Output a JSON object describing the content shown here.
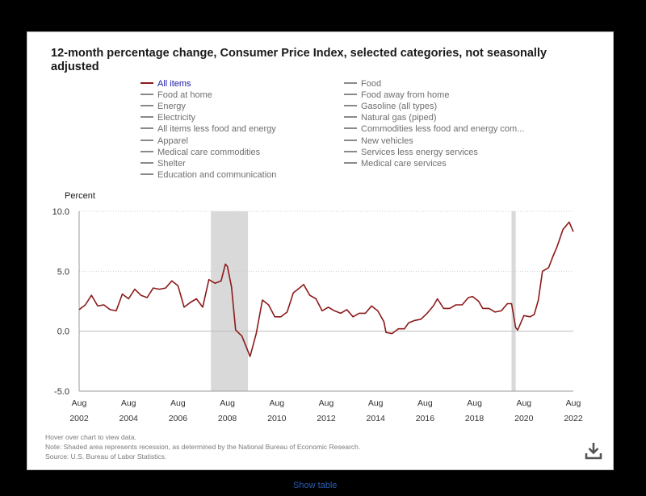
{
  "chart_data": {
    "type": "line",
    "title": "12-month percentage change, Consumer Price Index, selected categories, not seasonally adjusted",
    "ylabel": "Percent",
    "xlabel": "",
    "ylim": [
      -5,
      10
    ],
    "yticks": [
      "10.0",
      "5.0",
      "0.0",
      "-5.0"
    ],
    "xticks": [
      {
        "month": "Aug",
        "year": "2002"
      },
      {
        "month": "Aug",
        "year": "2004"
      },
      {
        "month": "Aug",
        "year": "2006"
      },
      {
        "month": "Aug",
        "year": "2008"
      },
      {
        "month": "Aug",
        "year": "2010"
      },
      {
        "month": "Aug",
        "year": "2012"
      },
      {
        "month": "Aug",
        "year": "2014"
      },
      {
        "month": "Aug",
        "year": "2016"
      },
      {
        "month": "Aug",
        "year": "2018"
      },
      {
        "month": "Aug",
        "year": "2020"
      },
      {
        "month": "Aug",
        "year": "2022"
      }
    ],
    "grid": true,
    "legend_position": "top",
    "recessions": [
      {
        "start": "2007-12",
        "end": "2009-06"
      },
      {
        "start": "2020-02",
        "end": "2020-04"
      }
    ],
    "series": [
      {
        "name": "All items",
        "color": "#8b1a1a",
        "x": [
          "2002-08",
          "2002-11",
          "2003-02",
          "2003-05",
          "2003-08",
          "2003-11",
          "2004-02",
          "2004-05",
          "2004-08",
          "2004-11",
          "2005-02",
          "2005-05",
          "2005-08",
          "2005-11",
          "2006-02",
          "2006-05",
          "2006-08",
          "2006-11",
          "2007-02",
          "2007-05",
          "2007-08",
          "2007-11",
          "2008-02",
          "2008-05",
          "2008-07",
          "2008-08",
          "2008-10",
          "2008-12",
          "2009-03",
          "2009-07",
          "2009-10",
          "2010-01",
          "2010-04",
          "2010-07",
          "2010-10",
          "2011-01",
          "2011-04",
          "2011-07",
          "2011-09",
          "2011-12",
          "2012-03",
          "2012-06",
          "2012-09",
          "2012-12",
          "2013-03",
          "2013-06",
          "2013-09",
          "2013-12",
          "2014-03",
          "2014-06",
          "2014-09",
          "2014-12",
          "2015-01",
          "2015-04",
          "2015-07",
          "2015-10",
          "2015-12",
          "2016-03",
          "2016-06",
          "2016-09",
          "2016-12",
          "2017-02",
          "2017-05",
          "2017-08",
          "2017-11",
          "2018-02",
          "2018-05",
          "2018-07",
          "2018-10",
          "2018-12",
          "2019-03",
          "2019-06",
          "2019-09",
          "2019-12",
          "2020-02",
          "2020-04",
          "2020-05",
          "2020-08",
          "2020-11",
          "2021-01",
          "2021-03",
          "2021-05",
          "2021-08",
          "2021-10",
          "2021-12",
          "2022-03",
          "2022-06",
          "2022-08"
        ],
        "y": [
          1.8,
          2.2,
          3.0,
          2.1,
          2.2,
          1.8,
          1.7,
          3.1,
          2.7,
          3.5,
          3.0,
          2.8,
          3.6,
          3.5,
          3.6,
          4.2,
          3.8,
          2.0,
          2.4,
          2.7,
          2.0,
          4.3,
          4.0,
          4.2,
          5.6,
          5.4,
          3.7,
          0.1,
          -0.4,
          -2.1,
          -0.2,
          2.6,
          2.2,
          1.2,
          1.2,
          1.6,
          3.2,
          3.6,
          3.9,
          3.0,
          2.7,
          1.7,
          2.0,
          1.7,
          1.5,
          1.8,
          1.2,
          1.5,
          1.5,
          2.1,
          1.7,
          0.8,
          -0.1,
          -0.2,
          0.2,
          0.2,
          0.7,
          0.9,
          1.0,
          1.5,
          2.1,
          2.7,
          1.9,
          1.9,
          2.2,
          2.2,
          2.8,
          2.9,
          2.5,
          1.9,
          1.9,
          1.6,
          1.7,
          2.3,
          2.3,
          0.3,
          0.1,
          1.3,
          1.2,
          1.4,
          2.6,
          5.0,
          5.3,
          6.2,
          7.0,
          8.5,
          9.1,
          8.3
        ]
      }
    ]
  },
  "legend": {
    "left": [
      "All items",
      "Food at home",
      "Energy",
      "Electricity",
      "All items less food and energy",
      "Apparel",
      "Medical care commodities",
      "Shelter",
      "Education and communication"
    ],
    "right": [
      "Food",
      "Food away from home",
      "Gasoline (all types)",
      "Natural gas (piped)",
      "Commodities less food and energy com...",
      "New vehicles",
      "Services less energy services",
      "Medical care services"
    ],
    "active": "All items"
  },
  "footer": {
    "hover_note": "Hover over chart to view data.",
    "note": "Note: Shaded area represents recession, as determined by the National Bureau of Economic Research.",
    "source": "Source: U.S. Bureau of Labor Statistics."
  },
  "show_table_label": "Show table",
  "icons": {
    "download": "download-icon"
  },
  "colors": {
    "series_line": "#8b1a1a",
    "recession_shade": "#d9d9d9",
    "legend_active_text": "#1a1aa6"
  }
}
